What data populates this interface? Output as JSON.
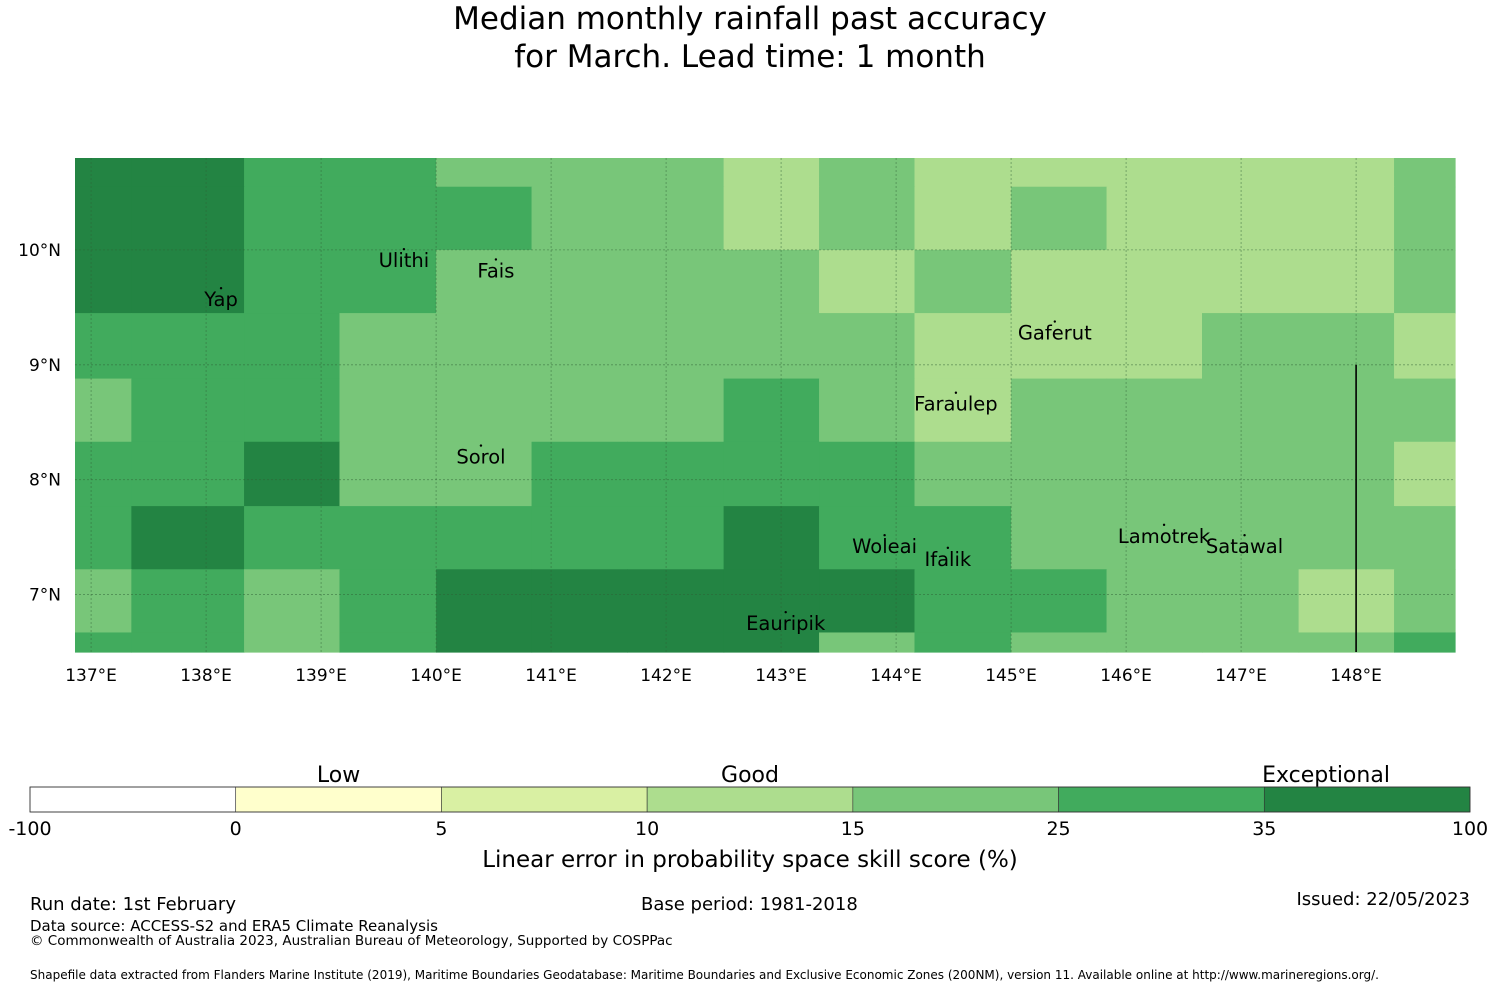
{
  "title": {
    "line1": "Median monthly rainfall past accuracy",
    "line2": "for March. Lead time: 1 month"
  },
  "chart_data": {
    "type": "heatmap",
    "x_ticks": [
      "137°E",
      "138°E",
      "139°E",
      "140°E",
      "141°E",
      "142°E",
      "143°E",
      "144°E",
      "145°E",
      "146°E",
      "147°E",
      "148°E"
    ],
    "y_ticks": [
      "10°N",
      "9°N",
      "8°N",
      "7°N"
    ],
    "x_range_deg": [
      136.86,
      148.86
    ],
    "y_range_deg": [
      6.5,
      10.8
    ],
    "grid": true,
    "lon_edges": [
      136.86,
      137.35,
      138.33,
      139.16,
      140.0,
      140.83,
      141.66,
      142.5,
      143.33,
      144.16,
      145.0,
      145.83,
      146.66,
      147.5,
      148.33,
      148.86
    ],
    "lat_edges": [
      10.8,
      10.55,
      10.0,
      9.45,
      8.88,
      8.33,
      7.77,
      7.22,
      6.67,
      6.5
    ],
    "cell_categories_note": "category index: 4 = 15 to 25, 5 = 25 to 35, 6 = 35 to 100; remaining indices follow the legend",
    "cell_categories": [
      [
        6,
        6,
        5,
        5,
        4,
        4,
        4,
        3,
        4,
        3,
        3,
        3,
        3,
        3,
        4
      ],
      [
        6,
        6,
        5,
        5,
        5,
        4,
        4,
        3,
        4,
        3,
        4,
        3,
        3,
        3,
        4
      ],
      [
        6,
        6,
        5,
        5,
        4,
        4,
        4,
        4,
        3,
        4,
        3,
        3,
        3,
        3,
        4
      ],
      [
        5,
        5,
        5,
        4,
        4,
        4,
        4,
        4,
        4,
        3,
        3,
        3,
        4,
        4,
        3
      ],
      [
        4,
        5,
        5,
        4,
        4,
        4,
        4,
        5,
        4,
        3,
        4,
        4,
        4,
        4,
        4
      ],
      [
        5,
        5,
        6,
        4,
        4,
        5,
        5,
        5,
        5,
        4,
        4,
        4,
        4,
        4,
        3
      ],
      [
        5,
        6,
        5,
        5,
        5,
        5,
        5,
        6,
        5,
        5,
        4,
        4,
        4,
        4,
        4
      ],
      [
        4,
        5,
        4,
        5,
        6,
        6,
        6,
        6,
        6,
        5,
        5,
        4,
        4,
        3,
        4
      ],
      [
        5,
        5,
        4,
        5,
        6,
        6,
        6,
        6,
        4,
        5,
        4,
        4,
        4,
        4,
        5
      ]
    ],
    "islands": [
      {
        "name": "Ulithi",
        "lon": 139.72,
        "lat": 9.85
      },
      {
        "name": "Fais",
        "lon": 140.52,
        "lat": 9.76
      },
      {
        "name": "Yap",
        "lon": 138.13,
        "lat": 9.51
      },
      {
        "name": "Gaferut",
        "lon": 145.38,
        "lat": 9.22
      },
      {
        "name": "Faraulep",
        "lon": 144.52,
        "lat": 8.6
      },
      {
        "name": "Sorol",
        "lon": 140.39,
        "lat": 8.14
      },
      {
        "name": "Woleai",
        "lon": 143.9,
        "lat": 7.36
      },
      {
        "name": "Ifalik",
        "lon": 144.45,
        "lat": 7.25
      },
      {
        "name": "Lamotrek",
        "lon": 146.33,
        "lat": 7.45
      },
      {
        "name": "Satawal",
        "lon": 147.03,
        "lat": 7.36
      },
      {
        "name": "Eauripik",
        "lon": 143.04,
        "lat": 6.69
      }
    ],
    "boundary_line": {
      "lon": 148.0,
      "lat_from": 9.0,
      "lat_to": 6.5
    },
    "legend": {
      "category_labels": [
        "Low",
        "Good",
        "Exceptional"
      ],
      "boundaries": [
        "-100",
        "0",
        "5",
        "10",
        "15",
        "25",
        "35",
        "100"
      ],
      "colors": [
        "#ffffff",
        "#ffffcc",
        "#d9f0a3",
        "#addd8e",
        "#78c679",
        "#41ab5d",
        "#238443"
      ],
      "xlabel": "Linear error in probability space skill score (%)"
    }
  },
  "colors": {
    "grid": "#2f5f35",
    "text": "#000000"
  },
  "footer": {
    "run_date": "Run date: 1st February",
    "base_period": "Base period: 1981-2018",
    "issued": "Issued: 22/05/2023",
    "data_source": "Data source: ACCESS-S2 and ERA5 Climate Reanalysis",
    "copyright": "© Commonwealth of Australia 2023, Australian Bureau of Meteorology, Supported by COSPPac",
    "shapefile": "Shapefile data extracted from Flanders Marine Institute (2019), Maritime Boundaries Geodatabase: Maritime Boundaries and Exclusive Economic Zones (200NM), version 11. Available online at http://www.marineregions.org/."
  }
}
